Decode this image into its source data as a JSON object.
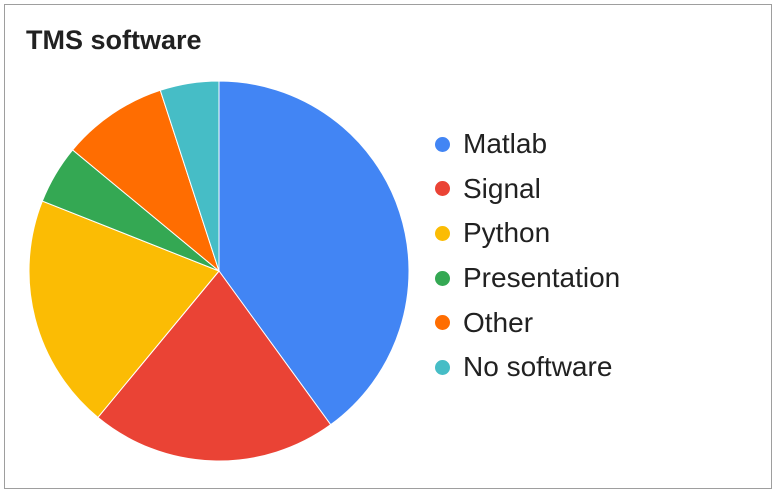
{
  "chart_data": {
    "type": "pie",
    "title": "TMS software",
    "categories": [
      "Matlab",
      "Signal",
      "Python",
      "Presentation",
      "Other",
      "No software"
    ],
    "values": [
      40,
      21,
      20,
      5,
      9,
      5
    ],
    "colors": [
      "#4285f4",
      "#ea4335",
      "#fbbc04",
      "#34a853",
      "#ff6d01",
      "#46bdc6"
    ],
    "legend_position": "right",
    "start_angle_deg": 0,
    "direction": "clockwise"
  }
}
